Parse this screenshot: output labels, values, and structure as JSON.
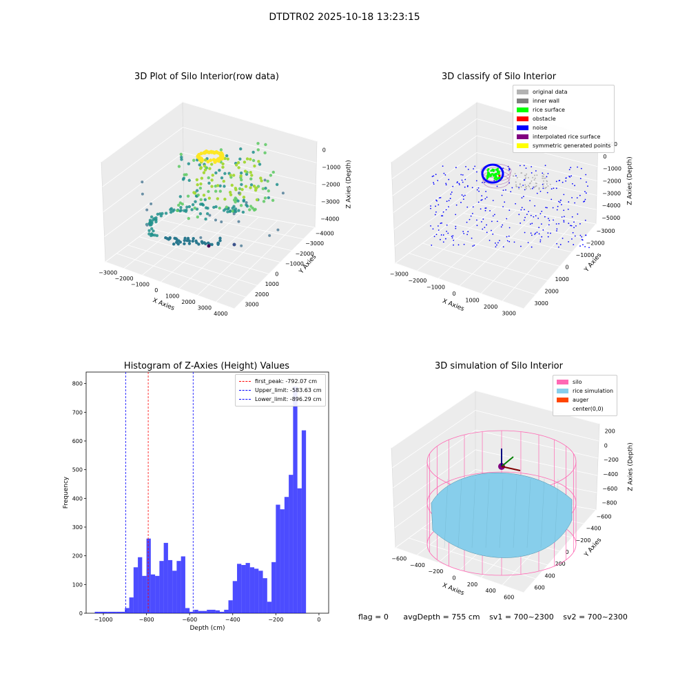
{
  "figure": {
    "title": "DTDTR02 2025-10-18 13:23:15"
  },
  "chart_data": [
    {
      "type": "scatter",
      "title": "3D Plot of Silo Interior(row data)",
      "xlabel": "X Axies",
      "ylabel": "Y Axies",
      "zlabel": "Z Axies (Depth)",
      "x_ticks": [
        "−3000",
        "−2000",
        "−1000",
        "0",
        "1000",
        "2000",
        "3000",
        "4000"
      ],
      "y_ticks": [
        "−4000",
        "−3000",
        "−2000",
        "−1000",
        "0",
        "1000",
        "2000",
        "3000"
      ],
      "z_ticks": [
        "−4000",
        "−3000",
        "−2000",
        "−1000",
        "0"
      ],
      "xlim": [
        -3500,
        4000
      ],
      "ylim": [
        -4000,
        3500
      ],
      "zlim": [
        -4500,
        300
      ],
      "colormap": "viridis",
      "colors": [
        "#440154",
        "#3b528b",
        "#21908c",
        "#5dc963",
        "#a6d83b",
        "#fde725"
      ]
    },
    {
      "type": "scatter",
      "title": "3D classify of Silo Interior",
      "xlabel": "X Axies",
      "ylabel": "Y Axies",
      "zlabel": "Z Axies (Depth)",
      "x_ticks": [
        "−3000",
        "−2000",
        "−1000",
        "0",
        "1000",
        "2000",
        "3000"
      ],
      "y_ticks": [
        "−3000",
        "−2000",
        "−1000",
        "0",
        "1000",
        "2000",
        "3000"
      ],
      "z_ticks": [
        "−5000",
        "−4000",
        "−3000",
        "−2000",
        "−1000",
        "0",
        "1000"
      ],
      "legend": [
        {
          "label": "original data",
          "color": "#b3b3b3"
        },
        {
          "label": "inner wall",
          "color": "#808080"
        },
        {
          "label": "rice surface",
          "color": "#00ff00"
        },
        {
          "label": "obstacle",
          "color": "#ff0000"
        },
        {
          "label": "noise",
          "color": "#0000ff"
        },
        {
          "label": "interpolated rice surface",
          "color": "#800080"
        },
        {
          "label": "symmetric generated points",
          "color": "#ffff00"
        }
      ]
    },
    {
      "type": "bar",
      "title": "Histogram of Z-Axies (Height) Values",
      "xlabel": "Depth (cm)",
      "ylabel": "Frequency",
      "xlim": [
        -1080,
        45
      ],
      "ylim": [
        0,
        840
      ],
      "x_ticks": [
        -1000,
        -800,
        -600,
        -400,
        -200,
        0
      ],
      "x_tick_labels": [
        "−1000",
        "−800",
        "−600",
        "−400",
        "−200",
        "0"
      ],
      "y_ticks": [
        0,
        100,
        200,
        300,
        400,
        500,
        600,
        700,
        800
      ],
      "y_tick_labels": [
        "0",
        "100",
        "200",
        "300",
        "400",
        "500",
        "600",
        "700",
        "800"
      ],
      "bar_color": "#0000ff",
      "bar_opacity": 0.7,
      "bin_edges": [
        -1040,
        -1020,
        -1000,
        -980,
        -960,
        -940,
        -920,
        -900,
        -880,
        -860,
        -840,
        -820,
        -800,
        -780,
        -760,
        -740,
        -720,
        -700,
        -680,
        -660,
        -640,
        -620,
        -600,
        -580,
        -560,
        -540,
        -520,
        -500,
        -480,
        -460,
        -440,
        -420,
        -400,
        -380,
        -360,
        -340,
        -320,
        -300,
        -280,
        -260,
        -240,
        -220,
        -200,
        -180,
        -160,
        -140,
        -120,
        -100,
        -80,
        -60,
        -40,
        -20,
        0
      ],
      "values": [
        5,
        5,
        5,
        5,
        5,
        5,
        5,
        18,
        55,
        160,
        195,
        130,
        260,
        135,
        130,
        182,
        245,
        185,
        148,
        182,
        198,
        18,
        5,
        12,
        8,
        8,
        12,
        12,
        10,
        5,
        12,
        45,
        112,
        172,
        168,
        175,
        160,
        155,
        148,
        122,
        40,
        178,
        378,
        362,
        405,
        482,
        790,
        435,
        637,
        0,
        0,
        0
      ],
      "lines": [
        {
          "label": "first_peak: -792.07 cm",
          "x": -792.07,
          "color": "#ff0000"
        },
        {
          "label": "Upper_limit: -583.63 cm",
          "x": -583.63,
          "color": "#0000ff"
        },
        {
          "label": "Lower_limit: -896.29 cm",
          "x": -896.29,
          "color": "#0000ff"
        }
      ],
      "legend_position": "upper right"
    },
    {
      "type": "surface",
      "title": "3D simulation of Silo Interior",
      "xlabel": "X Axies",
      "ylabel": "Y Axies",
      "zlabel": "Z Axies (Depth)",
      "x_ticks": [
        "−600",
        "−400",
        "−200",
        "0",
        "200",
        "400",
        "600"
      ],
      "y_ticks": [
        "−600",
        "−400",
        "−200",
        "0",
        "200",
        "400",
        "600"
      ],
      "z_ticks": [
        "−800",
        "−600",
        "−400",
        "−200",
        "0",
        "200"
      ],
      "legend": [
        {
          "label": "silo",
          "color": "#ff69b4"
        },
        {
          "label": "rice simulation",
          "color": "#87ceeb"
        },
        {
          "label": "auger",
          "color": "#ff4500"
        },
        {
          "label": "center(0,0)",
          "color": ""
        }
      ]
    }
  ],
  "footer": {
    "flag": "flag = 0",
    "avg": "avgDepth = 755 cm",
    "sv1": "sv1 = 700~2300",
    "sv2": "sv2 = 700~2300"
  }
}
